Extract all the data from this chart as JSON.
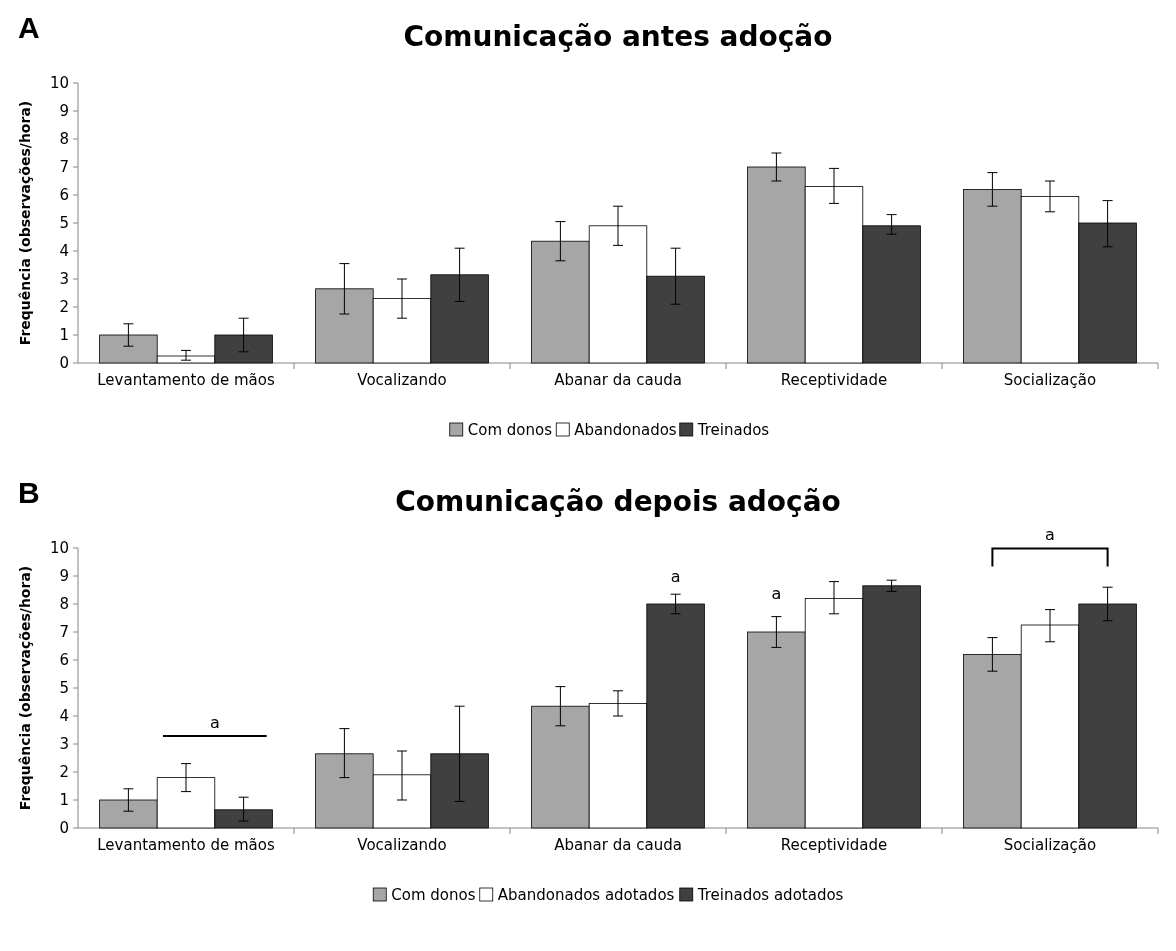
{
  "chart_data": [
    {
      "type": "bar",
      "title": "Comunicação antes adoção",
      "ylabel": "Frequência (observações/hora)",
      "categories": [
        "Levantamento de mãos",
        "Vocalizando",
        "Abanar da cauda",
        "Receptividade",
        "Socialização"
      ],
      "ylim": [
        0,
        10
      ],
      "yticks": [
        0,
        1,
        2,
        3,
        4,
        5,
        6,
        7,
        8,
        9,
        10
      ],
      "legend": "bottom",
      "annotations": [
        "A"
      ],
      "series": [
        {
          "name": "Com donos",
          "color": "#a6a6a6",
          "values": [
            1.0,
            2.65,
            4.35,
            7.0,
            6.2
          ],
          "errors": [
            [
              0.6,
              1.4
            ],
            [
              1.75,
              3.55
            ],
            [
              3.65,
              5.05
            ],
            [
              6.5,
              7.5
            ],
            [
              5.6,
              6.8
            ]
          ]
        },
        {
          "name": "Abandonados",
          "color": "#ffffff",
          "values": [
            0.25,
            2.3,
            4.9,
            6.3,
            5.95
          ],
          "errors": [
            [
              0.1,
              0.45
            ],
            [
              1.6,
              3.0
            ],
            [
              4.2,
              5.6
            ],
            [
              5.7,
              6.95
            ],
            [
              5.4,
              6.5
            ]
          ]
        },
        {
          "name": "Treinados",
          "color": "#404040",
          "values": [
            1.0,
            3.15,
            3.1,
            4.9,
            5.0
          ],
          "errors": [
            [
              0.4,
              1.6
            ],
            [
              2.2,
              4.1
            ],
            [
              2.1,
              4.1
            ],
            [
              4.6,
              5.3
            ],
            [
              4.15,
              5.8
            ]
          ]
        }
      ]
    },
    {
      "type": "bar",
      "title": "Comunicação depois adoção",
      "ylabel": "Frequência (observações/hora)",
      "categories": [
        "Levantamento de mãos",
        "Vocalizando",
        "Abanar da cauda",
        "Receptividade",
        "Socialização"
      ],
      "ylim": [
        0,
        10
      ],
      "yticks": [
        0,
        1,
        2,
        3,
        4,
        5,
        6,
        7,
        8,
        9,
        10
      ],
      "legend": "bottom",
      "annotations": [
        "B",
        "a",
        "a",
        "a",
        "a"
      ],
      "series": [
        {
          "name": "Com donos",
          "color": "#a6a6a6",
          "values": [
            1.0,
            2.65,
            4.35,
            7.0,
            6.2
          ],
          "errors": [
            [
              0.6,
              1.4
            ],
            [
              1.8,
              3.55
            ],
            [
              3.65,
              5.05
            ],
            [
              6.45,
              7.55
            ],
            [
              5.6,
              6.8
            ]
          ]
        },
        {
          "name": "Abandonados adotados",
          "color": "#ffffff",
          "values": [
            1.8,
            1.9,
            4.45,
            8.2,
            7.25
          ],
          "errors": [
            [
              1.3,
              2.3
            ],
            [
              1.0,
              2.75
            ],
            [
              4.0,
              4.9
            ],
            [
              7.65,
              8.8
            ],
            [
              6.65,
              7.8
            ]
          ]
        },
        {
          "name": "Treinados adotados",
          "color": "#404040",
          "values": [
            0.65,
            2.65,
            8.0,
            8.65,
            8.0
          ],
          "errors": [
            [
              0.25,
              1.1
            ],
            [
              0.95,
              4.35
            ],
            [
              7.65,
              8.35
            ],
            [
              8.45,
              8.85
            ],
            [
              7.4,
              8.6
            ]
          ]
        }
      ]
    }
  ]
}
